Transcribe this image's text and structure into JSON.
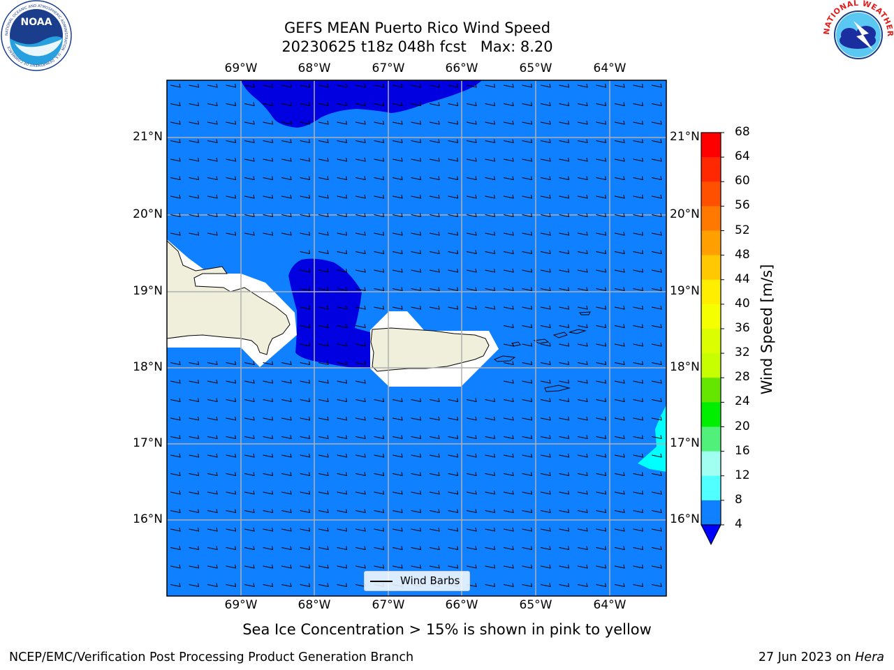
{
  "header": {
    "title": "GEFS MEAN Puerto Rico Wind Speed",
    "subtitle": "20230625 t18z 048h fcst   Max: 8.20"
  },
  "map": {
    "lon_labels": [
      "69°W",
      "68°W",
      "67°W",
      "66°W",
      "65°W",
      "64°W"
    ],
    "lat_labels": [
      "21°N",
      "20°N",
      "19°N",
      "18°N",
      "17°N",
      "16°N"
    ],
    "legend_label": "Wind Barbs",
    "background_field_color": "#0f80ff",
    "low_speed_color": "#0000e0",
    "high_speed_color": "#00ffff",
    "land_color": "#efefdc",
    "barb_direction": "from east"
  },
  "colorbar": {
    "label": "Wind Speed [m/s]",
    "ticks": [
      "68",
      "64",
      "60",
      "56",
      "52",
      "48",
      "44",
      "40",
      "36",
      "32",
      "28",
      "24",
      "20",
      "16",
      "12",
      "8",
      "4"
    ],
    "colors": [
      "#ff0000",
      "#ff2800",
      "#ff5000",
      "#ff7800",
      "#ffa000",
      "#ffc800",
      "#ffee00",
      "#f5ff00",
      "#dcff00",
      "#c8ff00",
      "#64e600",
      "#00ee00",
      "#50f07a",
      "#a0fff0",
      "#50ffff",
      "#00ffff",
      "#0f80ff",
      "#0000ff"
    ]
  },
  "footer": {
    "note": "Sea Ice Concentration > 15% is shown in pink to yellow",
    "left": "NCEP/EMC/Verification Post Processing Product Generation Branch",
    "date": "27 Jun 2023 on",
    "machine": "Hera"
  },
  "logos": {
    "noaa": "NOAA",
    "noaa_ring": "NATIONAL OCEANIC AND ATMOSPHERIC ADMINISTRATION · U.S. DEPARTMENT OF COMMERCE",
    "nws_ring": "NATIONAL WEATHER SERVICE"
  }
}
